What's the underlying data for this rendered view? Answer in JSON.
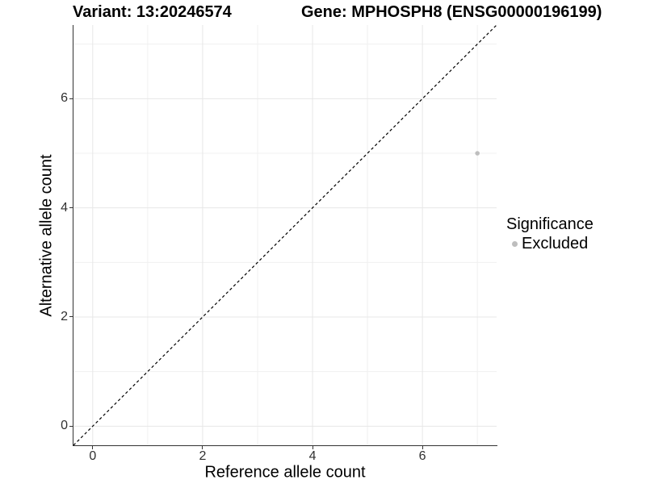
{
  "header": {
    "title_left": "Variant: 13:20246574",
    "title_right": "Gene: MPHOSPH8 (ENSG00000196199)"
  },
  "chart_data": {
    "type": "scatter",
    "xlabel": "Reference allele count",
    "ylabel": "Alternative allele count",
    "xlim": [
      -0.35,
      7.35
    ],
    "ylim": [
      -0.35,
      7.35
    ],
    "xticks": [
      0,
      2,
      4,
      6
    ],
    "yticks": [
      0,
      2,
      4,
      6
    ],
    "minor_ticks_x": [
      1,
      3,
      5,
      7
    ],
    "minor_ticks_y": [
      1,
      3,
      5,
      7
    ],
    "grid": true,
    "identity_line": {
      "equation": "y = x",
      "style": "dashed",
      "color": "#000000"
    },
    "series": [
      {
        "name": "Excluded",
        "color": "#bebebe",
        "points": [
          {
            "x": 7,
            "y": 5
          }
        ]
      }
    ],
    "legend": {
      "title": "Significance",
      "position": "right",
      "entries": [
        {
          "label": "Excluded",
          "color": "#bebebe"
        }
      ]
    }
  },
  "colors": {
    "grid_major": "#e7e7e7",
    "grid_minor": "#f0f0f0",
    "axis": "#333333",
    "tick_label": "#303030"
  }
}
